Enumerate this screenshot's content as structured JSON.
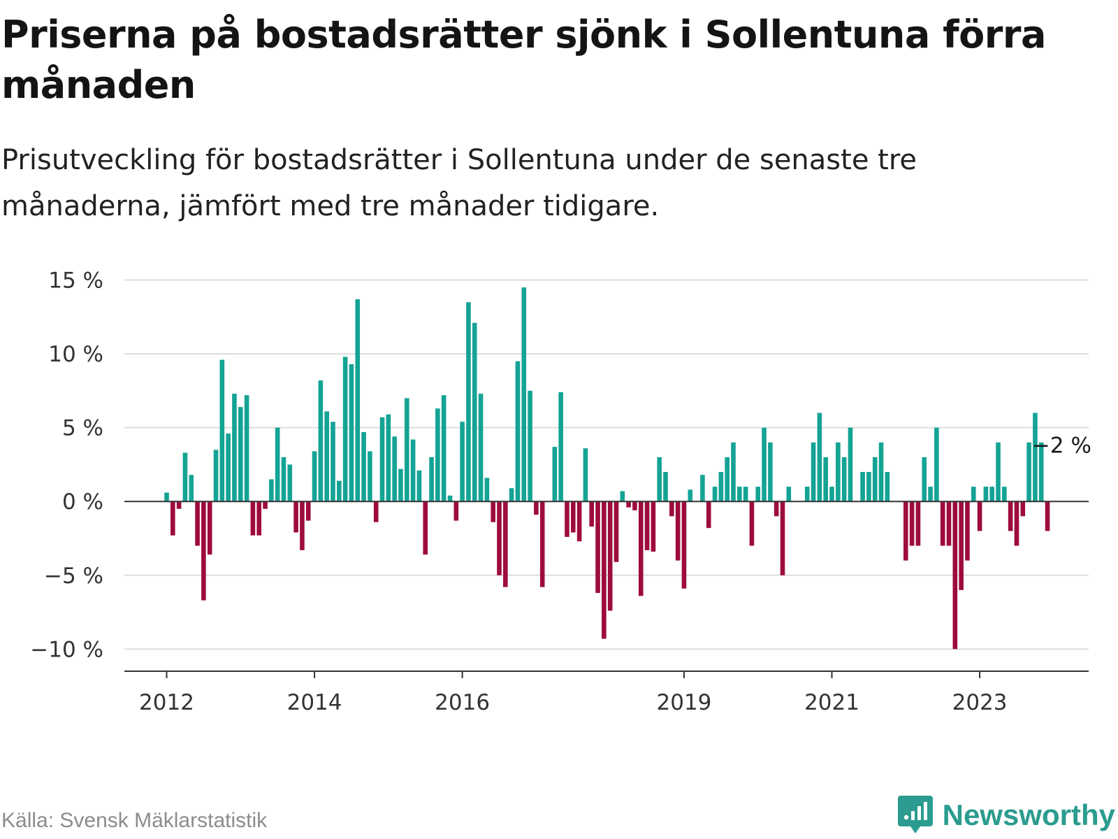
{
  "title": "Priserna på bostadsrätter sjönk i Sollentuna förra månaden",
  "subtitle": "Prisutveckling för bostadsrätter i Sollentuna under de senaste tre månaderna, jämfört med tre månader tidigare.",
  "source": "Källa: Svensk Mäklarstatistik",
  "brand": {
    "name": "Newsworthy"
  },
  "colors": {
    "positive": "#14a395",
    "negative": "#9e0b3d",
    "grid": "#dddddd",
    "axis": "#333333"
  },
  "chart_data": {
    "type": "bar",
    "title": "Priserna på bostadsrätter sjönk i Sollentuna förra månaden",
    "xlabel": "",
    "ylabel": "",
    "ylim": [
      -11.5,
      15.5
    ],
    "start": {
      "year": 2012,
      "month": 1
    },
    "y_ticks": [
      15,
      10,
      5,
      0,
      -5,
      -10
    ],
    "y_tick_labels": [
      "15 %",
      "10 %",
      "5 %",
      "0 %",
      "−5 %",
      "−10 %"
    ],
    "x_ticks": [
      {
        "label": "2012",
        "index": 0
      },
      {
        "label": "2014",
        "index": 24
      },
      {
        "label": "2016",
        "index": 48
      },
      {
        "label": "2019",
        "index": 84
      },
      {
        "label": "2021",
        "index": 108
      },
      {
        "label": "2023",
        "index": 132
      }
    ],
    "annotation": {
      "label": "−2 %",
      "index": 141
    },
    "values": [
      0.6,
      -2.3,
      -0.5,
      3.3,
      1.8,
      -3.0,
      -6.7,
      -3.6,
      3.5,
      9.6,
      4.6,
      7.3,
      6.4,
      7.2,
      -2.3,
      -2.3,
      -0.5,
      1.5,
      5.0,
      3.0,
      2.5,
      -2.1,
      -3.3,
      -1.3,
      3.4,
      8.2,
      6.1,
      5.4,
      1.4,
      9.8,
      9.3,
      13.7,
      4.7,
      3.4,
      -1.4,
      5.7,
      5.9,
      4.4,
      2.2,
      7.0,
      4.2,
      2.1,
      -3.6,
      3.0,
      6.3,
      7.2,
      0.4,
      -1.3,
      5.4,
      13.5,
      12.1,
      7.3,
      1.6,
      -1.4,
      -5.0,
      -5.8,
      0.9,
      9.5,
      14.5,
      7.5,
      -0.9,
      -5.8,
      0.0,
      3.7,
      7.4,
      -2.4,
      -2.1,
      -2.7,
      3.6,
      -1.7,
      -6.2,
      -9.3,
      -7.4,
      -4.1,
      0.7,
      -0.4,
      -0.6,
      -6.4,
      -3.3,
      -3.4,
      3.0,
      2.0,
      -1.0,
      -4.0,
      -5.9,
      0.8,
      0.0,
      1.8,
      -1.8,
      1.0,
      2.0,
      3.0,
      4.0,
      1.0,
      1.0,
      -3.0,
      1.0,
      5.0,
      4.0,
      -1.0,
      -5.0,
      1.0,
      0.0,
      0.0,
      1.0,
      4.0,
      6.0,
      3.0,
      1.0,
      4.0,
      3.0,
      5.0,
      0.0,
      2.0,
      2.0,
      3.0,
      4.0,
      2.0,
      0.0,
      0.0,
      -4.0,
      -3.0,
      -3.0,
      3.0,
      1.0,
      5.0,
      -3.0,
      -3.0,
      -10.0,
      -6.0,
      -4.0,
      1.0,
      -2.0,
      1.0,
      1.0,
      4.0,
      1.0,
      -2.0,
      -3.0,
      -1.0,
      4.0,
      6.0,
      4.0,
      -2.0
    ]
  }
}
